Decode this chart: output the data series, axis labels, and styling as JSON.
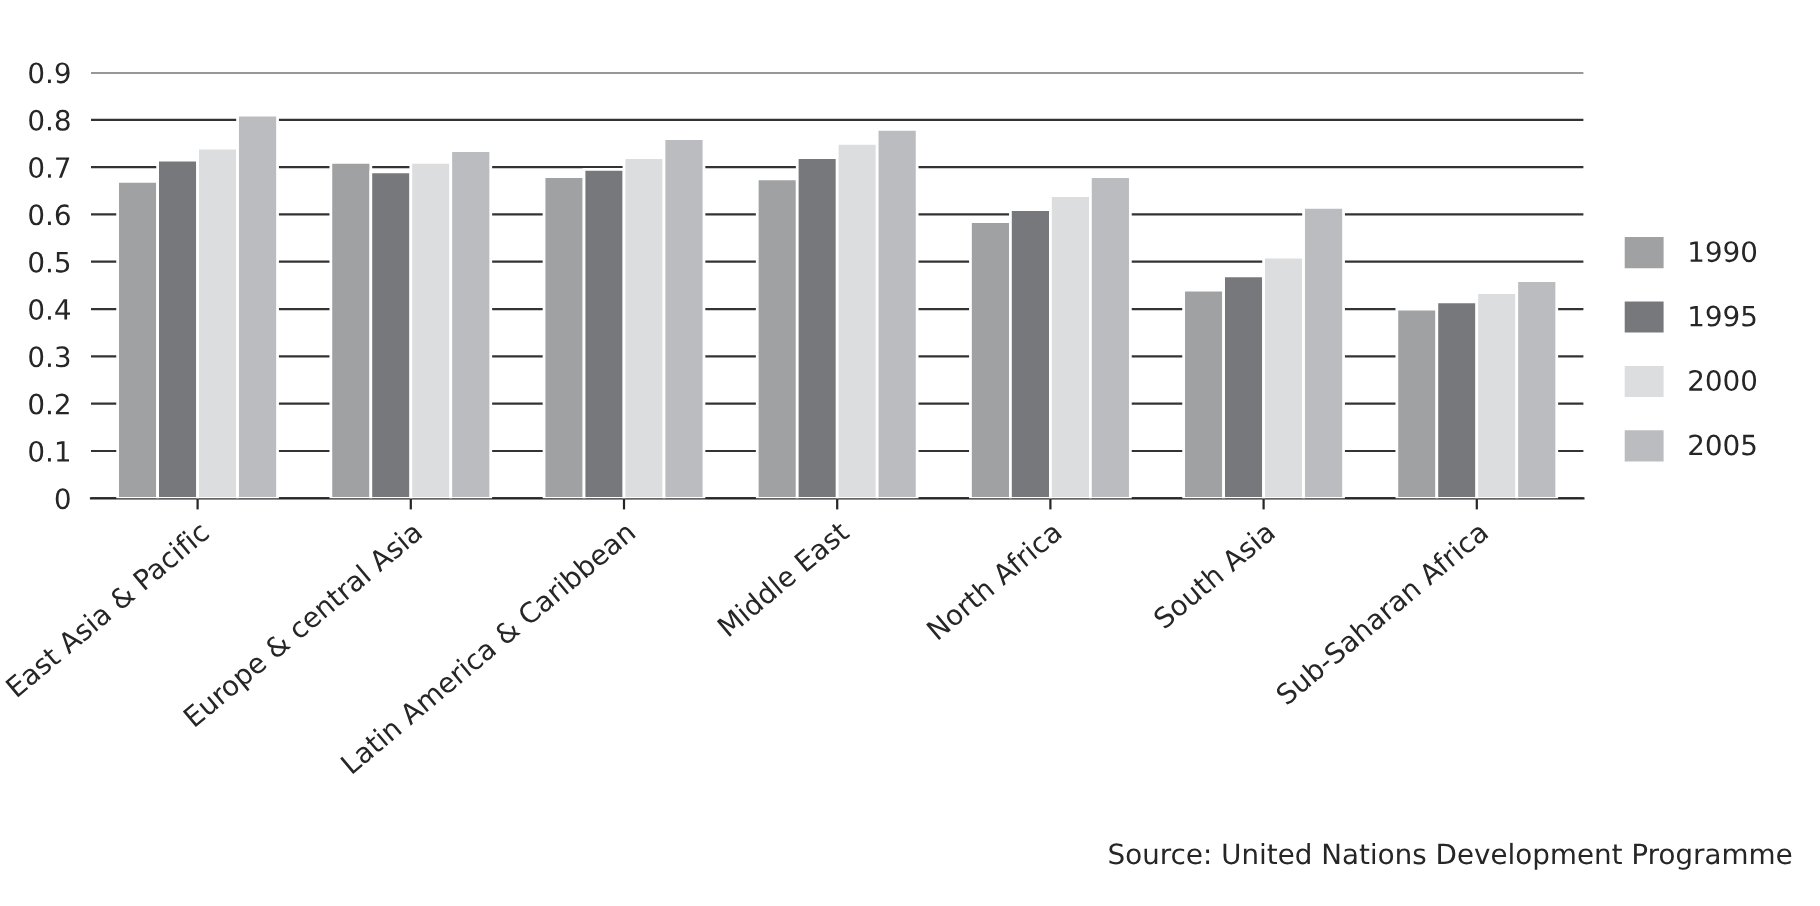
{
  "chart_data": {
    "type": "bar",
    "categories": [
      "East Asia & Pacific",
      "Europe & central Asia",
      "Latin America & Caribbean",
      "Middle East",
      "North Africa",
      "South Asia",
      "Sub-Saharan Africa"
    ],
    "series": [
      {
        "name": "1990",
        "color": "#a0a1a3",
        "values": [
          0.67,
          0.71,
          0.68,
          0.675,
          0.585,
          0.44,
          0.4
        ]
      },
      {
        "name": "1995",
        "color": "#77787c",
        "values": [
          0.715,
          0.69,
          0.695,
          0.72,
          0.61,
          0.47,
          0.415
        ]
      },
      {
        "name": "2000",
        "color": "#dcdddf",
        "values": [
          0.74,
          0.71,
          0.72,
          0.75,
          0.64,
          0.51,
          0.435
        ]
      },
      {
        "name": "2005",
        "color": "#bbbcc0",
        "values": [
          0.81,
          0.735,
          0.76,
          0.78,
          0.68,
          0.615,
          0.46
        ]
      }
    ],
    "ylim": [
      0,
      0.9
    ],
    "yticks": [
      0,
      0.1,
      0.2,
      0.3,
      0.4,
      0.5,
      0.6,
      0.7,
      0.8,
      0.9
    ],
    "grid": "y",
    "legend": "right",
    "annotations": [
      "Source: United Nations Development Programme"
    ]
  }
}
